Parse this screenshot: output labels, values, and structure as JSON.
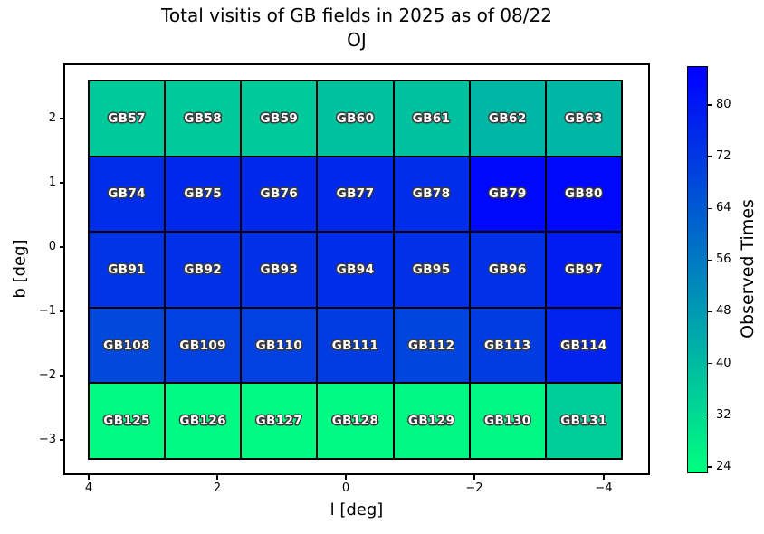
{
  "title": {
    "line1": "Total visitis of GB fields in 2025 as of 08/22",
    "line2": "OJ"
  },
  "axes": {
    "xlabel": "l [deg]",
    "ylabel": "b [deg]",
    "x_ticks": [
      "4",
      "2",
      "0",
      "−2",
      "−4"
    ],
    "y_ticks": [
      "2",
      "1",
      "0",
      "−1",
      "−2",
      "−3"
    ]
  },
  "colorbar": {
    "label": "Observed Times",
    "tick_labels": [
      "80",
      "72",
      "64",
      "56",
      "48",
      "40",
      "32",
      "24"
    ],
    "tick_values": [
      80,
      72,
      64,
      56,
      48,
      40,
      32,
      24
    ],
    "vmin": 23,
    "vmax": 86,
    "color_low": "#00FF80",
    "color_high": "#0000FF"
  },
  "chart_data": {
    "type": "heatmap",
    "title": "Total visitis of GB fields in 2025 as of 08/22 OJ",
    "xlabel": "l [deg]",
    "ylabel": "b [deg]",
    "x_tick_labels": [
      4,
      2,
      0,
      -2,
      -4
    ],
    "y_tick_labels": [
      2,
      1,
      0,
      -1,
      -2,
      -3
    ],
    "colorbar_label": "Observed Times",
    "colorbar_ticks": [
      24,
      32,
      40,
      48,
      56,
      64,
      72,
      80
    ],
    "colormap": "winter reversed (green = low, blue = high)",
    "vmin": 23,
    "vmax": 86,
    "grid": {
      "rows": 5,
      "cols": 7
    },
    "rows": [
      {
        "fields": [
          "GB57",
          "GB58",
          "GB59",
          "GB60",
          "GB61",
          "GB62",
          "GB63"
        ],
        "values": [
          36,
          36,
          36,
          38,
          38,
          41,
          41
        ]
      },
      {
        "fields": [
          "GB74",
          "GB75",
          "GB76",
          "GB77",
          "GB78",
          "GB79",
          "GB80"
        ],
        "values": [
          75,
          76,
          76,
          76,
          75,
          84,
          84
        ]
      },
      {
        "fields": [
          "GB91",
          "GB92",
          "GB93",
          "GB94",
          "GB95",
          "GB96",
          "GB97"
        ],
        "values": [
          73,
          74,
          74,
          75,
          74,
          74,
          79
        ]
      },
      {
        "fields": [
          "GB108",
          "GB109",
          "GB110",
          "GB111",
          "GB112",
          "GB113",
          "GB114"
        ],
        "values": [
          68,
          70,
          70,
          71,
          69,
          71,
          77
        ]
      },
      {
        "fields": [
          "GB125",
          "GB126",
          "GB127",
          "GB128",
          "GB129",
          "GB130",
          "GB131"
        ],
        "values": [
          24,
          24,
          24,
          24,
          25,
          25,
          35
        ]
      }
    ]
  }
}
